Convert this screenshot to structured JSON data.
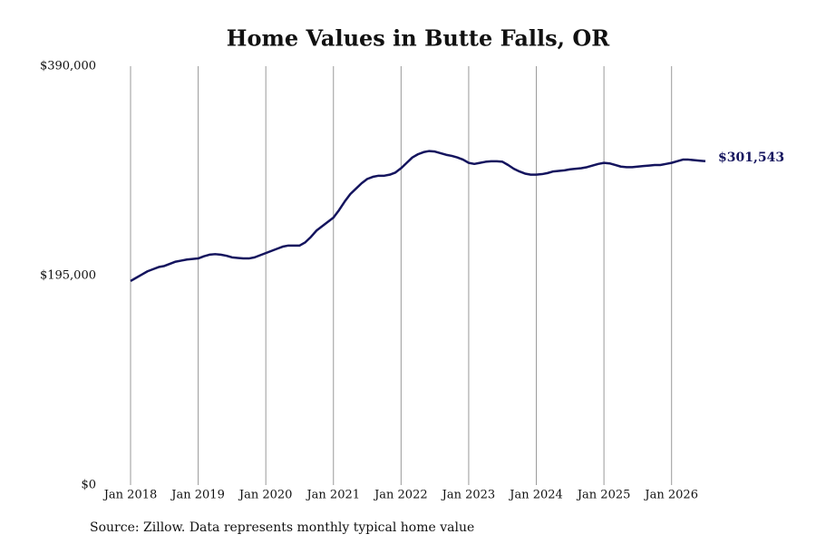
{
  "chart_data": {
    "type": "line",
    "title": "Home Values in Butte Falls, OR",
    "source": "Source: Zillow. Data represents monthly typical home value",
    "x": [
      "2018-01",
      "2018-02",
      "2018-03",
      "2018-04",
      "2018-05",
      "2018-06",
      "2018-07",
      "2018-08",
      "2018-09",
      "2018-10",
      "2018-11",
      "2018-12",
      "2019-01",
      "2019-02",
      "2019-03",
      "2019-04",
      "2019-05",
      "2019-06",
      "2019-07",
      "2019-08",
      "2019-09",
      "2019-10",
      "2019-11",
      "2019-12",
      "2020-01",
      "2020-02",
      "2020-03",
      "2020-04",
      "2020-05",
      "2020-06",
      "2020-07",
      "2020-08",
      "2020-09",
      "2020-10",
      "2020-11",
      "2020-12",
      "2021-01",
      "2021-02",
      "2021-03",
      "2021-04",
      "2021-05",
      "2021-06",
      "2021-07",
      "2021-08",
      "2021-09",
      "2021-10",
      "2021-11",
      "2021-12",
      "2022-01",
      "2022-02",
      "2022-03",
      "2022-04",
      "2022-05",
      "2022-06",
      "2022-07",
      "2022-08",
      "2022-09",
      "2022-10",
      "2022-11",
      "2022-12",
      "2023-01",
      "2023-02",
      "2023-03",
      "2023-04",
      "2023-05",
      "2023-06",
      "2023-07",
      "2023-08",
      "2023-09",
      "2023-10",
      "2023-11",
      "2023-12",
      "2024-01",
      "2024-02",
      "2024-03",
      "2024-04",
      "2024-05",
      "2024-06",
      "2024-07",
      "2024-08",
      "2024-09",
      "2024-10",
      "2024-11",
      "2024-12",
      "2025-01",
      "2025-02",
      "2025-03",
      "2025-04",
      "2025-05",
      "2025-06",
      "2025-07",
      "2025-08",
      "2025-09",
      "2025-10",
      "2025-11",
      "2025-12",
      "2026-01",
      "2026-02",
      "2026-03",
      "2026-04",
      "2026-05",
      "2026-06",
      "2026-07"
    ],
    "values": [
      190000,
      193000,
      196000,
      199000,
      201000,
      203000,
      204000,
      206000,
      208000,
      209000,
      210000,
      210500,
      211000,
      213000,
      214500,
      215000,
      214500,
      213500,
      212000,
      211500,
      211000,
      211000,
      212000,
      214000,
      216000,
      218000,
      220000,
      222000,
      223000,
      223000,
      223000,
      226000,
      231000,
      237000,
      241000,
      245000,
      249000,
      256000,
      264000,
      271000,
      276000,
      281000,
      285000,
      287000,
      288000,
      288000,
      289000,
      291000,
      295000,
      300000,
      305000,
      308000,
      310000,
      311000,
      310500,
      309000,
      307500,
      306500,
      305000,
      303000,
      300000,
      299000,
      300000,
      301000,
      301500,
      301500,
      301000,
      298000,
      294500,
      292000,
      290000,
      289000,
      289000,
      289500,
      290500,
      292000,
      292500,
      293000,
      294000,
      294500,
      295000,
      296000,
      297500,
      299000,
      300000,
      299500,
      298000,
      296500,
      296000,
      296000,
      296500,
      297000,
      297500,
      298000,
      298000,
      299000,
      300000,
      301500,
      303000,
      303000,
      302500,
      302000,
      301543
    ],
    "value_labels": [
      null,
      null,
      null,
      null,
      null,
      null,
      null,
      null,
      null,
      null,
      null,
      null,
      null,
      null,
      null,
      null,
      null,
      null,
      null,
      null,
      null,
      null,
      null,
      null,
      null,
      null,
      null,
      null,
      null,
      null,
      null,
      null,
      null,
      null,
      null,
      null,
      null,
      null,
      null,
      null,
      null,
      null,
      null,
      null,
      null,
      null,
      null,
      null,
      null,
      null,
      null,
      null,
      null,
      null,
      null,
      null,
      null,
      null,
      null,
      null,
      null,
      null,
      null,
      null,
      null,
      null,
      null,
      null,
      null,
      null,
      null,
      null,
      null,
      null,
      null,
      null,
      null,
      null,
      null,
      null,
      null,
      null,
      null,
      null,
      null,
      null,
      null,
      null,
      null,
      null,
      null,
      null,
      null,
      null,
      null,
      null,
      null,
      null,
      null,
      null,
      null,
      null,
      "$301,543"
    ],
    "color": "#14145e",
    "xlim": [
      "2018-01",
      "2026-07"
    ],
    "xticks": [
      {
        "value": "2018-01",
        "label": "Jan 2018"
      },
      {
        "value": "2019-01",
        "label": "Jan 2019"
      },
      {
        "value": "2020-01",
        "label": "Jan 2020"
      },
      {
        "value": "2021-01",
        "label": "Jan 2021"
      },
      {
        "value": "2022-01",
        "label": "Jan 2022"
      },
      {
        "value": "2023-01",
        "label": "Jan 2023"
      },
      {
        "value": "2024-01",
        "label": "Jan 2024"
      },
      {
        "value": "2025-01",
        "label": "Jan 2025"
      },
      {
        "value": "2026-01",
        "label": "Jan 2026"
      }
    ],
    "ylim": [
      0,
      390000
    ],
    "yticks": [
      {
        "value": 0,
        "label": "$0"
      },
      {
        "value": 195000,
        "label": "$195,000"
      },
      {
        "value": 390000,
        "label": "$390,000"
      }
    ],
    "grid": "x"
  }
}
